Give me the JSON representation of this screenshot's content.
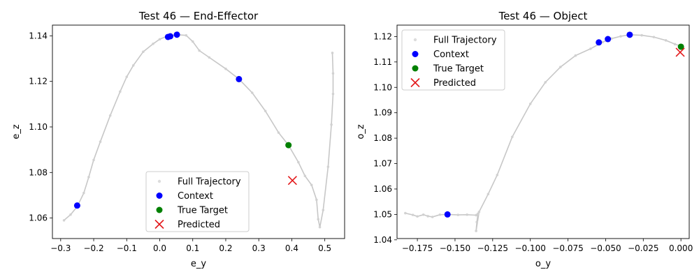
{
  "chart_data": [
    {
      "type": "line",
      "title": "Test 46 — End-Effector",
      "xlabel": "e_y",
      "ylabel": "e_z",
      "xlim": [
        -0.325,
        0.56
      ],
      "ylim": [
        1.051,
        1.1447
      ],
      "xticks": [
        -0.3,
        -0.2,
        -0.1,
        0.0,
        0.1,
        0.2,
        0.3,
        0.4,
        0.5
      ],
      "xtick_labels": [
        "−0.3",
        "−0.2",
        "−0.1",
        "0.0",
        "0.1",
        "0.2",
        "0.3",
        "0.4",
        "0.5"
      ],
      "yticks": [
        1.06,
        1.08,
        1.1,
        1.12,
        1.14
      ],
      "ytick_labels": [
        "1.06",
        "1.08",
        "1.10",
        "1.12",
        "1.14"
      ],
      "legend_position": "lower-center",
      "series": [
        {
          "name": "Full Trajectory",
          "x": [
            -0.29,
            -0.27,
            -0.25,
            -0.23,
            -0.215,
            -0.2,
            -0.18,
            -0.15,
            -0.12,
            -0.1,
            -0.08,
            -0.05,
            -0.02,
            0.0,
            0.02,
            0.05,
            0.08,
            0.1,
            0.12,
            0.15,
            0.2,
            0.24,
            0.28,
            0.32,
            0.36,
            0.39,
            0.42,
            0.44,
            0.46,
            0.475,
            0.48,
            0.485,
            0.495,
            0.51,
            0.52,
            0.525,
            0.525,
            0.523
          ],
          "y": [
            1.059,
            1.0615,
            1.065,
            1.071,
            1.078,
            1.0855,
            1.0935,
            1.105,
            1.1155,
            1.122,
            1.127,
            1.133,
            1.1365,
            1.1385,
            1.1397,
            1.1405,
            1.1402,
            1.1375,
            1.1335,
            1.1305,
            1.1255,
            1.121,
            1.115,
            1.107,
            1.0975,
            1.092,
            1.0845,
            1.0785,
            1.0745,
            1.068,
            1.0595,
            1.056,
            1.0635,
            1.0825,
            1.101,
            1.1145,
            1.1235,
            1.1325
          ]
        },
        {
          "name": "Context",
          "x": [
            -0.25,
            0.025,
            0.032,
            0.052,
            0.24
          ],
          "y": [
            1.0655,
            1.1395,
            1.1398,
            1.1405,
            1.121
          ]
        },
        {
          "name": "True Target",
          "x": [
            0.39
          ],
          "y": [
            1.092
          ]
        },
        {
          "name": "Predicted",
          "x": [
            0.402
          ],
          "y": [
            1.0765
          ]
        }
      ]
    },
    {
      "type": "line",
      "title": "Test 46 — Object",
      "xlabel": "o_y",
      "ylabel": "o_z",
      "xlim": [
        -0.1885,
        0.0055
      ],
      "ylim": [
        1.0405,
        1.1245
      ],
      "xticks": [
        -0.175,
        -0.15,
        -0.125,
        -0.1,
        -0.075,
        -0.05,
        -0.025,
        0.0
      ],
      "xtick_labels": [
        "−0.175",
        "−0.150",
        "−0.125",
        "−0.100",
        "−0.075",
        "−0.050",
        "−0.025",
        "0.000"
      ],
      "yticks": [
        1.04,
        1.05,
        1.06,
        1.07,
        1.08,
        1.09,
        1.1,
        1.11,
        1.12
      ],
      "ytick_labels": [
        "1.04",
        "1.05",
        "1.06",
        "1.07",
        "1.08",
        "1.09",
        "1.10",
        "1.11",
        "1.12"
      ],
      "legend_position": "upper-left",
      "series": [
        {
          "name": "Full Trajectory",
          "x": [
            -0.183,
            -0.178,
            -0.175,
            -0.171,
            -0.168,
            -0.165,
            -0.16,
            -0.155,
            -0.148,
            -0.142,
            -0.136,
            -0.135,
            -0.1347,
            -0.1355,
            -0.136,
            -0.134,
            -0.128,
            -0.122,
            -0.112,
            -0.1,
            -0.09,
            -0.08,
            -0.07,
            -0.06,
            -0.052,
            -0.046,
            -0.04,
            -0.034,
            -0.026,
            -0.018,
            -0.01,
            -0.004,
            0.0
          ],
          "y": [
            1.0505,
            1.0498,
            1.0492,
            1.0499,
            1.0493,
            1.049,
            1.0499,
            1.05,
            1.0498,
            1.0499,
            1.0497,
            1.05,
            1.0503,
            1.047,
            1.0435,
            1.051,
            1.058,
            1.0655,
            1.0805,
            1.0935,
            1.102,
            1.108,
            1.1125,
            1.1152,
            1.1178,
            1.1192,
            1.1201,
            1.1207,
            1.1205,
            1.1198,
            1.1185,
            1.117,
            1.1162
          ]
        },
        {
          "name": "Context",
          "x": [
            -0.155,
            -0.0545,
            -0.0485,
            -0.034
          ],
          "y": [
            1.05,
            1.1177,
            1.119,
            1.1207
          ]
        },
        {
          "name": "True Target",
          "x": [
            0.0
          ],
          "y": [
            1.116
          ]
        },
        {
          "name": "Predicted",
          "x": [
            -0.0005
          ],
          "y": [
            1.1138
          ]
        }
      ]
    }
  ],
  "colors": {
    "trajectory": "#bdbdbd",
    "context": "#0000ff",
    "true_target": "#008000",
    "predicted": "#e31a1c"
  }
}
